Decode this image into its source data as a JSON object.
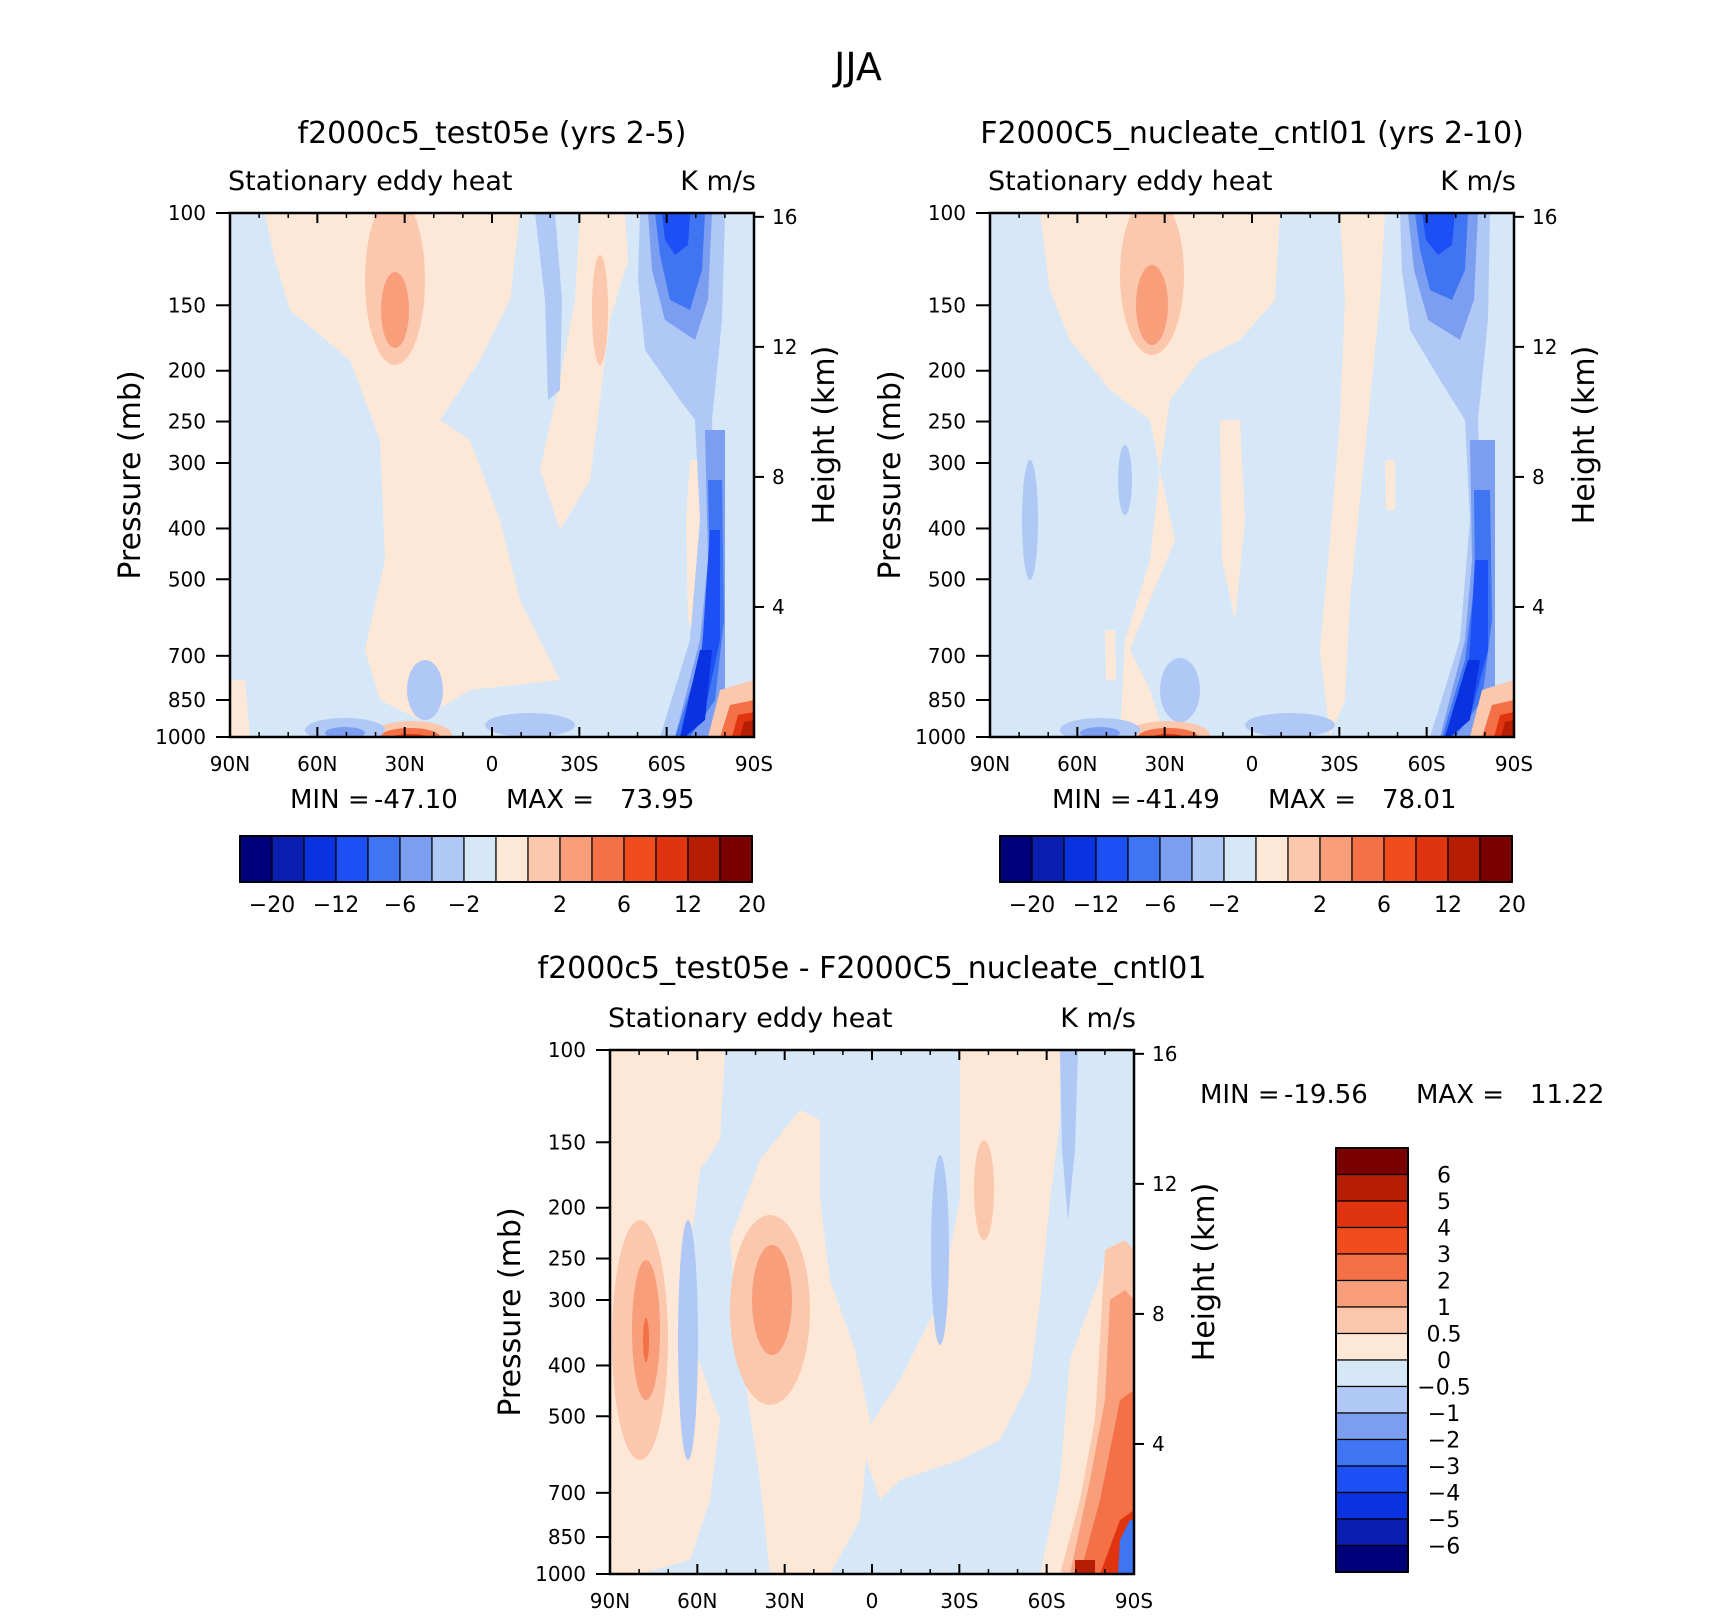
{
  "figure_title": "JJA",
  "chart_data": [
    {
      "type": "heatmap",
      "id": "panel1",
      "title": "f2000c5_test05e (yrs 2-5)",
      "subtitle_left": "Stationary eddy heat",
      "subtitle_right": "K m/s",
      "xlabel": "",
      "ylabel": "Pressure (mb)",
      "ylabel_right": "Height (km)",
      "x_ticks": [
        "90N",
        "60N",
        "30N",
        "0",
        "30S",
        "60S",
        "90S"
      ],
      "y_ticks": [
        "100",
        "150",
        "200",
        "250",
        "300",
        "400",
        "500",
        "700",
        "850",
        "1000"
      ],
      "y_ticks_right": [
        "16",
        "12",
        "8",
        "4"
      ],
      "ylim": [
        1000,
        100
      ],
      "xlim": [
        90,
        -90
      ],
      "min_label": "MIN =",
      "min_value": "-47.10",
      "max_label": "MAX =",
      "max_value": "73.95",
      "colorbar_orientation": "horizontal",
      "colorbar_labels": [
        "-20",
        "-12",
        "-6",
        "-2",
        "2",
        "6",
        "12",
        "20"
      ],
      "features": [
        {
          "lat": 30,
          "p": 150,
          "value": 5
        },
        {
          "lat": 30,
          "p": 1000,
          "value": 20
        },
        {
          "lat": 60,
          "p": 980,
          "value": -6
        },
        {
          "lat": -65,
          "p": 120,
          "value": -12
        },
        {
          "lat": -70,
          "p": 600,
          "value": -12
        },
        {
          "lat": -85,
          "p": 950,
          "value": 20
        }
      ]
    },
    {
      "type": "heatmap",
      "id": "panel2",
      "title": "F2000C5_nucleate_cntl01 (yrs 2-10)",
      "subtitle_left": "Stationary eddy heat",
      "subtitle_right": "K m/s",
      "xlabel": "",
      "ylabel": "Pressure (mb)",
      "ylabel_right": "Height (km)",
      "x_ticks": [
        "90N",
        "60N",
        "30N",
        "0",
        "30S",
        "60S",
        "90S"
      ],
      "y_ticks": [
        "100",
        "150",
        "200",
        "250",
        "300",
        "400",
        "500",
        "700",
        "850",
        "1000"
      ],
      "y_ticks_right": [
        "16",
        "12",
        "8",
        "4"
      ],
      "ylim": [
        1000,
        100
      ],
      "xlim": [
        90,
        -90
      ],
      "min_label": "MIN =",
      "min_value": "-41.49",
      "max_label": "MAX =",
      "max_value": "78.01",
      "colorbar_orientation": "horizontal",
      "colorbar_labels": [
        "-20",
        "-12",
        "-6",
        "-2",
        "2",
        "6",
        "12",
        "20"
      ],
      "features": [
        {
          "lat": 32,
          "p": 150,
          "value": 5
        },
        {
          "lat": 30,
          "p": 1000,
          "value": 20
        },
        {
          "lat": 60,
          "p": 980,
          "value": -6
        },
        {
          "lat": -65,
          "p": 120,
          "value": -12
        },
        {
          "lat": -72,
          "p": 600,
          "value": -12
        },
        {
          "lat": -85,
          "p": 950,
          "value": 20
        }
      ]
    },
    {
      "type": "heatmap",
      "id": "panel3",
      "title": "f2000c5_test05e - F2000C5_nucleate_cntl01",
      "subtitle_left": "Stationary eddy heat",
      "subtitle_right": "K m/s",
      "xlabel": "",
      "ylabel": "Pressure (mb)",
      "ylabel_right": "Height (km)",
      "x_ticks": [
        "90N",
        "60N",
        "30N",
        "0",
        "30S",
        "60S",
        "90S"
      ],
      "y_ticks": [
        "100",
        "150",
        "200",
        "250",
        "300",
        "400",
        "500",
        "700",
        "850",
        "1000"
      ],
      "y_ticks_right": [
        "16",
        "12",
        "8",
        "4"
      ],
      "ylim": [
        1000,
        100
      ],
      "xlim": [
        90,
        -90
      ],
      "min_label": "MIN =",
      "min_value": "-19.56",
      "max_label": "MAX =",
      "max_value": "11.22",
      "colorbar_orientation": "vertical",
      "colorbar_labels": [
        "6",
        "5",
        "4",
        "3",
        "2",
        "1",
        "0.5",
        "0",
        "-0.5",
        "-1",
        "-2",
        "-3",
        "-4",
        "-5",
        "-6"
      ],
      "features": [
        {
          "lat": 75,
          "p": 400,
          "value": 2
        },
        {
          "lat": 33,
          "p": 320,
          "value": 2
        },
        {
          "lat": 63,
          "p": 500,
          "value": -1
        },
        {
          "lat": -88,
          "p": 500,
          "value": 2
        },
        {
          "lat": -65,
          "p": 200,
          "value": -1
        },
        {
          "lat": -80,
          "p": 950,
          "value": 6
        }
      ]
    }
  ],
  "colorbar_colors_main": [
    "#00007a",
    "#0a1fb0",
    "#0a32e0",
    "#1c50f5",
    "#3f74f3",
    "#7c9ef1",
    "#b0c8f5",
    "#d6e7f7",
    "#fde8d8",
    "#fbc7ad",
    "#f89e7b",
    "#f47046",
    "#f04c1d",
    "#e03410",
    "#b51e02",
    "#7a0000"
  ],
  "colorbar_colors_diff": [
    "#7a0000",
    "#b51e02",
    "#e03410",
    "#f04c1d",
    "#f47046",
    "#f89e7b",
    "#fbc7ad",
    "#fde8d8",
    "#d6e7f7",
    "#b0c8f5",
    "#7c9ef1",
    "#3f74f3",
    "#1c50f5",
    "#0a32e0",
    "#0a1fb0",
    "#00007a"
  ]
}
